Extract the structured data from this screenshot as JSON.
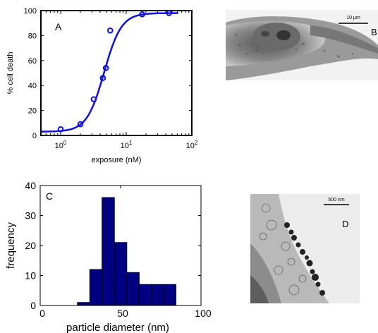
{
  "chart_data": [
    {
      "type": "scatter",
      "panel_label": "A",
      "xlabel": "exposure (nM)",
      "ylabel": "% cell death",
      "xscale": "log",
      "xlim": [
        0.5,
        100
      ],
      "ylim": [
        0,
        100
      ],
      "xticks": [
        1,
        10,
        100
      ],
      "xtick_labels": [
        {
          "base": "10",
          "exp": "0"
        },
        {
          "base": "10",
          "exp": "1"
        },
        {
          "base": "10",
          "exp": "2"
        }
      ],
      "yticks": [
        0,
        20,
        40,
        60,
        80,
        100
      ],
      "points": {
        "x": [
          1.0,
          2.0,
          3.2,
          4.4,
          4.9,
          5.7,
          17.5,
          45.0
        ],
        "y": [
          5,
          9,
          29,
          46,
          54,
          84,
          97,
          98
        ]
      },
      "fit_curve": {
        "bottom": 3,
        "top": 98,
        "ec50": 4.6,
        "hill": 3.3
      },
      "grid": false,
      "colors": {
        "series": "#1010e0"
      }
    },
    {
      "type": "bar",
      "panel_label": "C",
      "xlabel": "particle diameter (nm)",
      "ylabel": "frequency",
      "xlim": [
        0,
        100
      ],
      "ylim": [
        0,
        40
      ],
      "xticks": [
        0,
        50,
        100
      ],
      "yticks": [
        0,
        10,
        20,
        30,
        40
      ],
      "bin_width": 7.7,
      "bin_centers": [
        27,
        34.7,
        42.3,
        50,
        57.7,
        65.3,
        73,
        80.6
      ],
      "values": [
        1,
        12,
        36,
        21,
        11,
        7,
        7,
        7
      ],
      "grid": false,
      "colors": {
        "bar": "#000080"
      }
    }
  ],
  "micrographs": [
    {
      "panel_label": "B",
      "scale_label": "10 µm"
    },
    {
      "panel_label": "D",
      "scale_label": "500 nm"
    }
  ]
}
